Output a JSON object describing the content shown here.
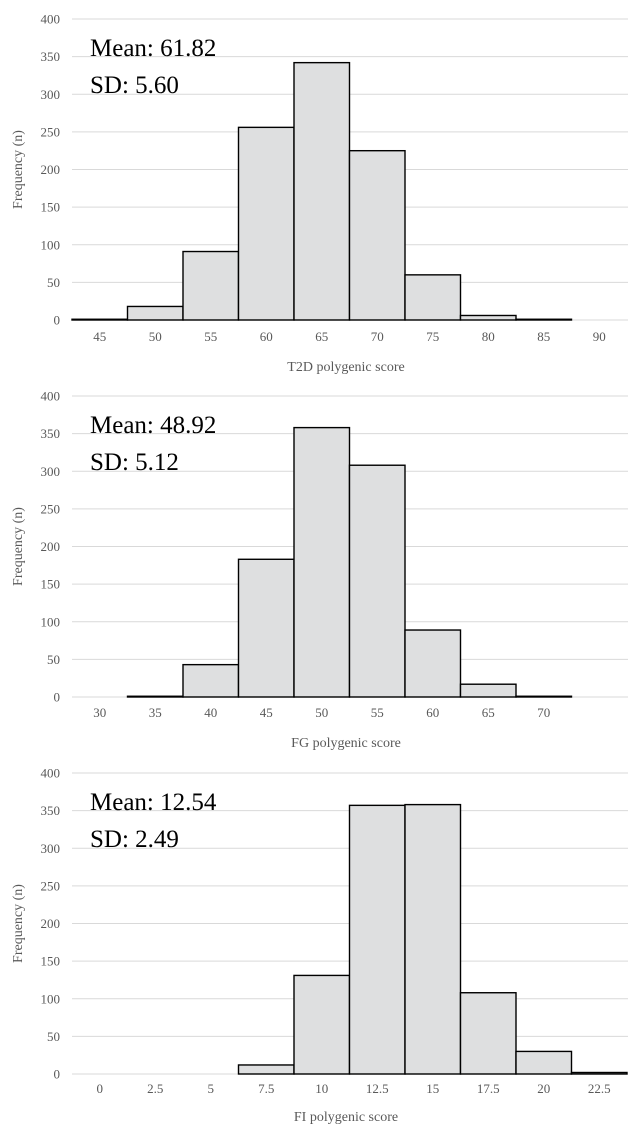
{
  "chart_data": [
    {
      "type": "bar",
      "title": "",
      "xlabel": "T2D polygenic score",
      "ylabel": "Frequency (n)",
      "ylim": [
        0,
        400
      ],
      "yticks": [
        0,
        50,
        100,
        150,
        200,
        250,
        300,
        350,
        400
      ],
      "xtick_labels": [
        "45",
        "50",
        "55",
        "60",
        "65",
        "70",
        "75",
        "80",
        "85",
        "90"
      ],
      "bin_width": 5,
      "bins": [
        {
          "center": 45,
          "value": 1
        },
        {
          "center": 50,
          "value": 18
        },
        {
          "center": 55,
          "value": 91
        },
        {
          "center": 60,
          "value": 256
        },
        {
          "center": 65,
          "value": 342
        },
        {
          "center": 70,
          "value": 225
        },
        {
          "center": 75,
          "value": 60
        },
        {
          "center": 80,
          "value": 6
        },
        {
          "center": 85,
          "value": 1
        },
        {
          "center": 90,
          "value": 0
        }
      ],
      "annotations": [
        "Mean: 61.82",
        "SD: 5.60"
      ],
      "grid": true,
      "legend": "none"
    },
    {
      "type": "bar",
      "title": "",
      "xlabel": "FG polygenic score",
      "ylabel": "Frequency (n)",
      "ylim": [
        0,
        400
      ],
      "yticks": [
        0,
        50,
        100,
        150,
        200,
        250,
        300,
        350,
        400
      ],
      "xtick_labels": [
        "30",
        "35",
        "40",
        "45",
        "50",
        "55",
        "60",
        "65",
        "70"
      ],
      "bin_width": 5,
      "bins": [
        {
          "center": 30,
          "value": 0
        },
        {
          "center": 35,
          "value": 1
        },
        {
          "center": 40,
          "value": 43
        },
        {
          "center": 45,
          "value": 183
        },
        {
          "center": 50,
          "value": 358
        },
        {
          "center": 55,
          "value": 308
        },
        {
          "center": 60,
          "value": 89
        },
        {
          "center": 65,
          "value": 17
        },
        {
          "center": 70,
          "value": 1
        }
      ],
      "annotations": [
        "Mean: 48.92",
        "SD: 5.12"
      ],
      "grid": true,
      "legend": "none"
    },
    {
      "type": "bar",
      "title": "",
      "xlabel": "FI polygenic score",
      "ylabel": "Frequency (n)",
      "ylim": [
        0,
        400
      ],
      "yticks": [
        0,
        50,
        100,
        150,
        200,
        250,
        300,
        350,
        400
      ],
      "xtick_labels": [
        "0",
        "2.5",
        "5",
        "7.5",
        "10",
        "12.5",
        "15",
        "17.5",
        "20",
        "22.5"
      ],
      "bin_width": 2.5,
      "bins": [
        {
          "center": 0,
          "value": 0
        },
        {
          "center": 2.5,
          "value": 0
        },
        {
          "center": 5,
          "value": 0
        },
        {
          "center": 7.5,
          "value": 12
        },
        {
          "center": 10,
          "value": 131
        },
        {
          "center": 12.5,
          "value": 357
        },
        {
          "center": 15,
          "value": 358
        },
        {
          "center": 17.5,
          "value": 108
        },
        {
          "center": 20,
          "value": 30
        },
        {
          "center": 22.5,
          "value": 2
        }
      ],
      "annotations": [
        "Mean: 12.54",
        "SD: 2.49"
      ],
      "grid": true,
      "legend": "none"
    }
  ]
}
